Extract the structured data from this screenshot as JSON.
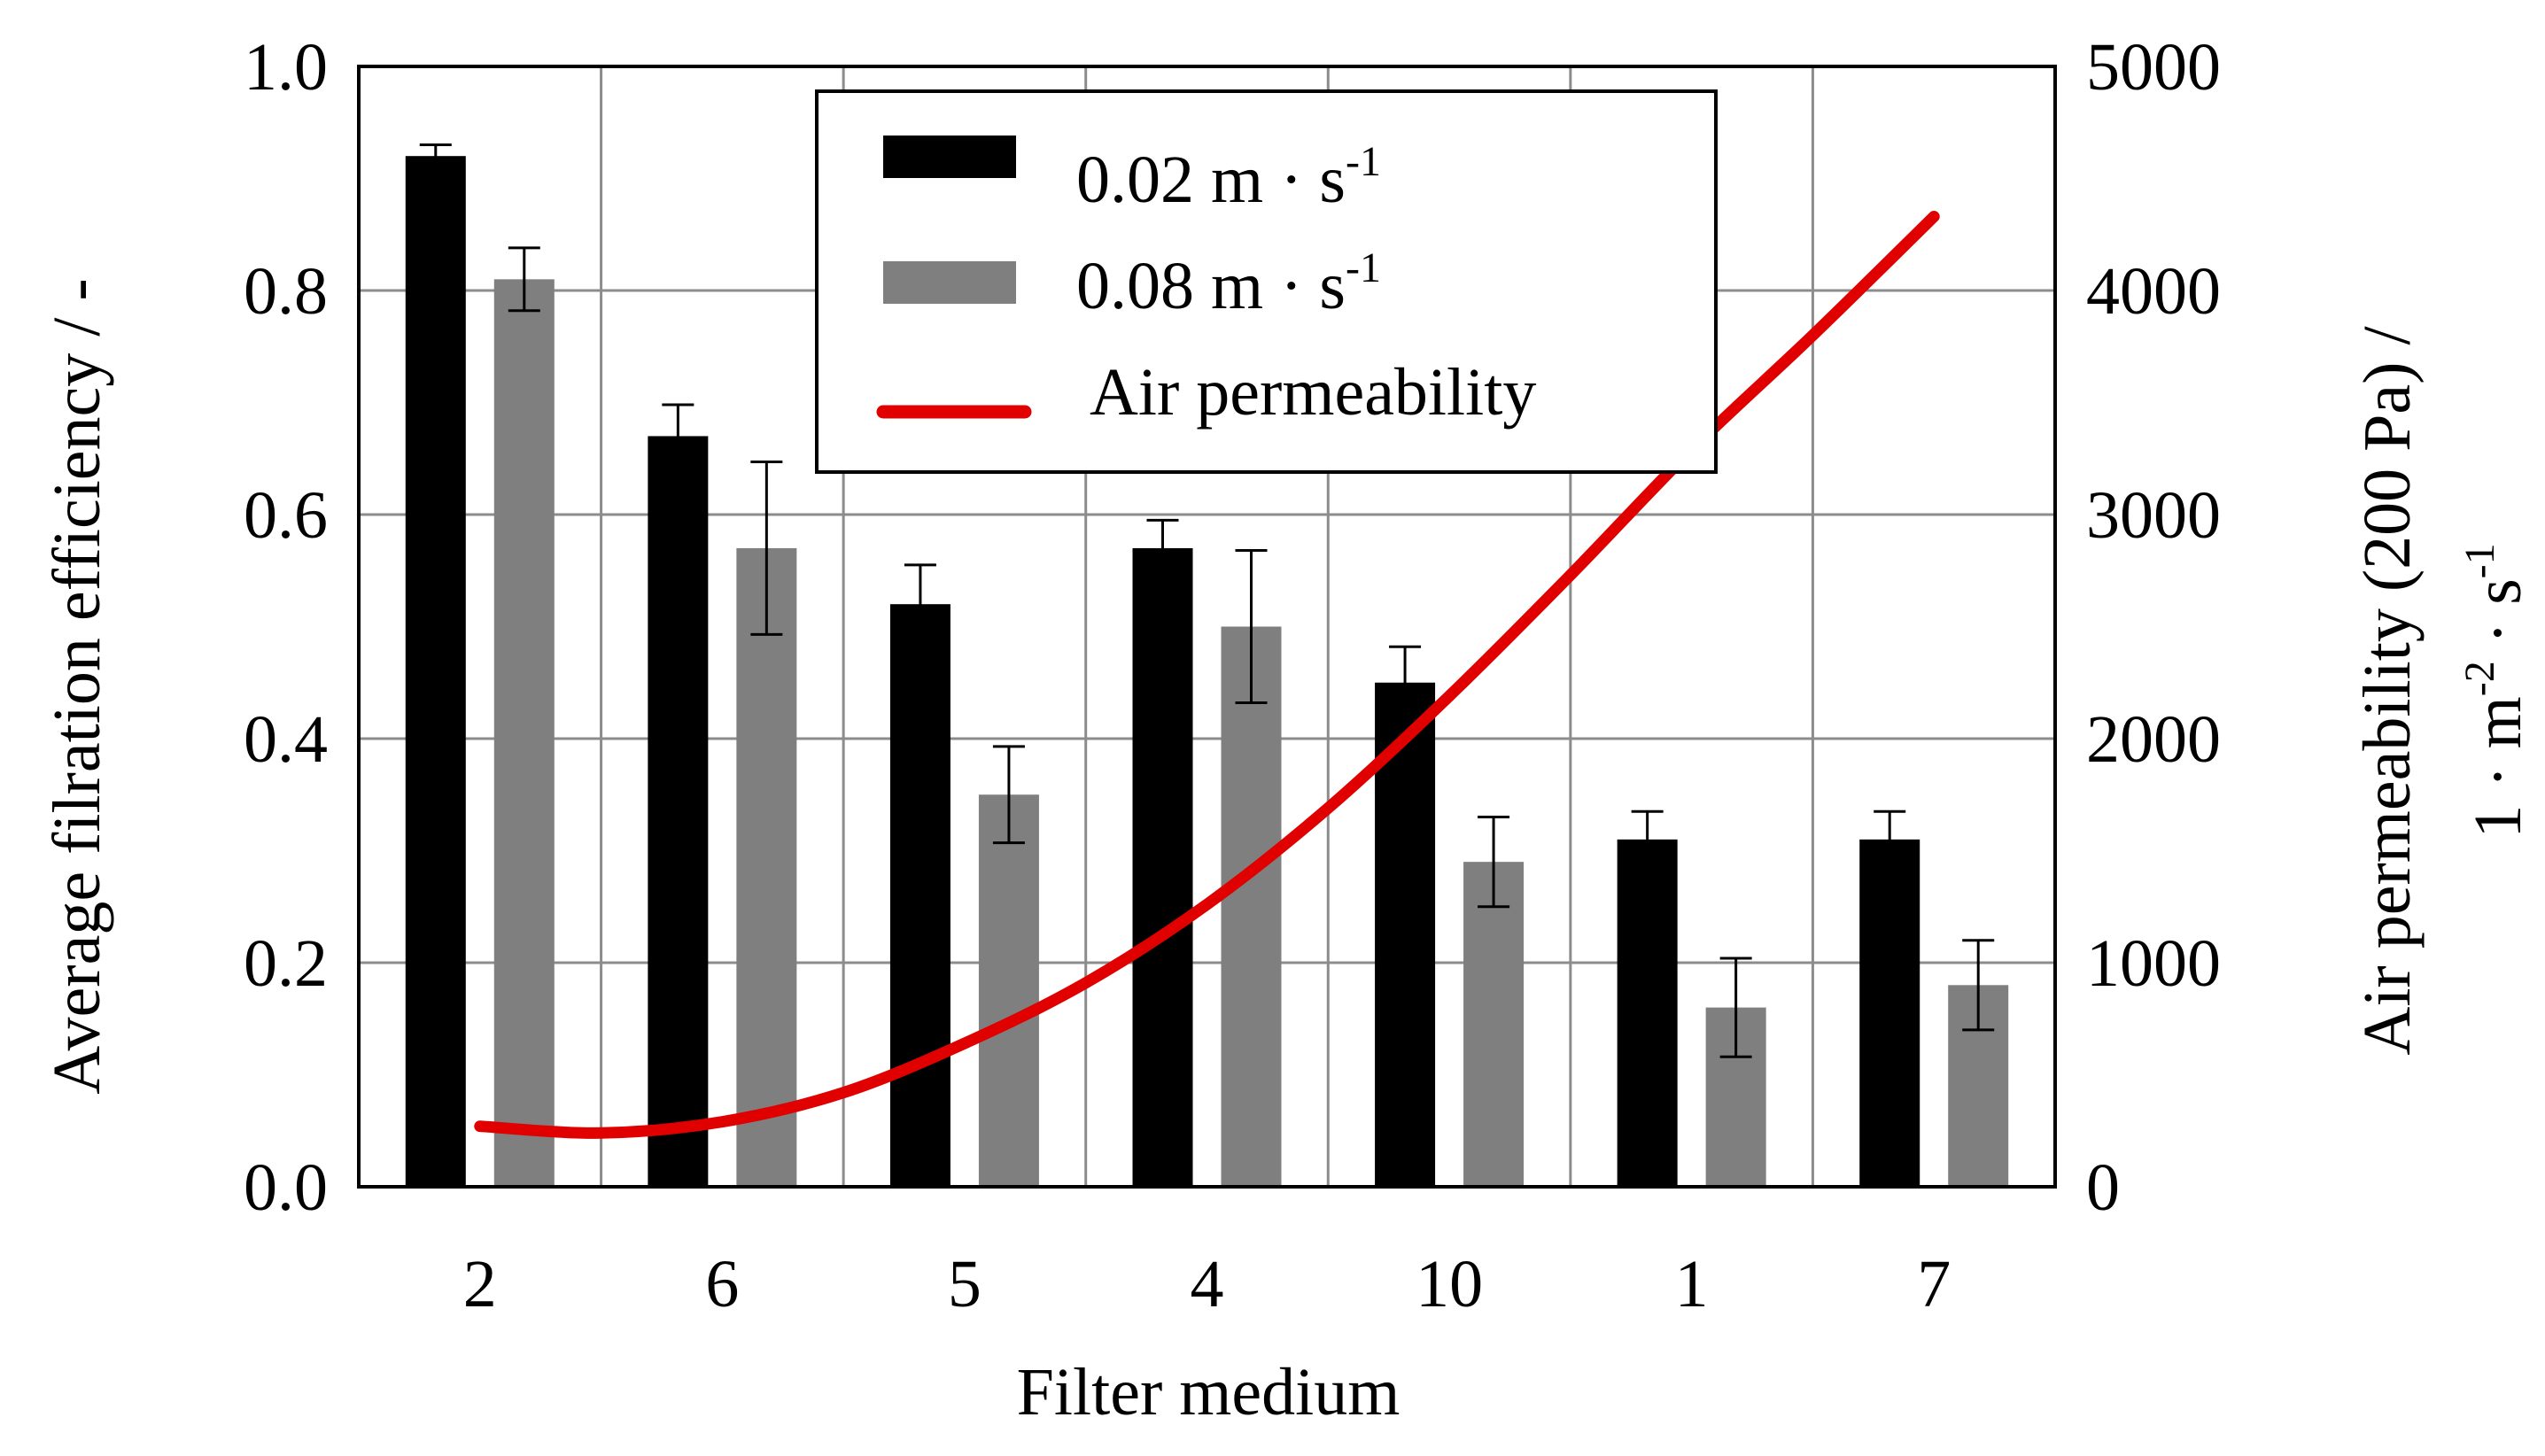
{
  "chart_data": {
    "type": "bar",
    "title": "",
    "categories": [
      "2",
      "6",
      "5",
      "4",
      "10",
      "1",
      "7"
    ],
    "xlabel": "Filter medium",
    "ylabel": "Average filration efficiency / -",
    "ylim": [
      0,
      1.0
    ],
    "yticks": [
      "0.0",
      "0.2",
      "0.4",
      "0.6",
      "0.8",
      "1.0"
    ],
    "ylabel2_line1": "Air permeability (200 Pa) /",
    "ylabel2_line2_parts": [
      "1 · m",
      "-2",
      " · s",
      "-1"
    ],
    "y2lim": [
      0,
      5000
    ],
    "y2ticks": [
      "0",
      "1000",
      "2000",
      "3000",
      "4000",
      "5000"
    ],
    "grid": true,
    "legend_position": "top-center",
    "series": [
      {
        "name": "0.02 m · s-1",
        "label_base": "0.02 m · s",
        "label_sup": "-1",
        "color": "#000000",
        "values": [
          0.92,
          0.67,
          0.52,
          0.57,
          0.45,
          0.31,
          0.31
        ],
        "errors": [
          0.01,
          0.028,
          0.035,
          0.025,
          0.032,
          0.025,
          0.025
        ]
      },
      {
        "name": "0.08 m · s-1",
        "label_base": "0.08 m · s",
        "label_sup": "-1",
        "color": "#7f7f7f",
        "values": [
          0.81,
          0.57,
          0.35,
          0.5,
          0.29,
          0.16,
          0.18
        ],
        "errors": [
          0.028,
          0.077,
          0.043,
          0.068,
          0.04,
          0.044,
          0.04
        ]
      }
    ],
    "line": {
      "name": "Air permeability",
      "color": "#e00000",
      "axis": "right",
      "x_start": 0,
      "x_end": 6,
      "x": [
        0,
        0.5,
        1,
        1.5,
        2,
        2.5,
        3,
        3.5,
        4,
        4.5,
        5,
        5.5,
        6
      ],
      "values": [
        270,
        240,
        290,
        420,
        640,
        910,
        1260,
        1690,
        2190,
        2730,
        3290,
        3800,
        4330
      ]
    }
  }
}
